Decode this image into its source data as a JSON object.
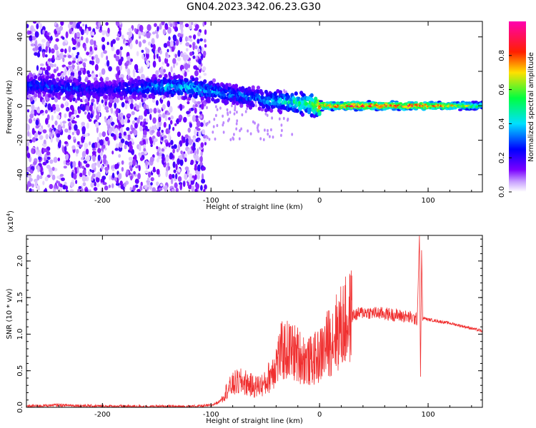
{
  "title": "GN04.2023.342.06.23.G30",
  "chart_data": [
    {
      "type": "heatmap",
      "xlabel": "Height of straight line (km)",
      "ylabel": "Frequency (Hz)",
      "xlim": [
        -270,
        150
      ],
      "ylim": [
        -50,
        49
      ],
      "xticks": [
        -200,
        -100,
        0,
        100
      ],
      "yticks": [
        -40,
        -20,
        0,
        20,
        40
      ],
      "colorbar": {
        "label": "Normalized spectral amplitude",
        "range": [
          0,
          1
        ],
        "ticks": [
          0.0,
          0.2,
          0.4,
          0.6,
          0.8
        ],
        "colors": [
          "#ffffff",
          "#7a00ff",
          "#0000ff",
          "#00e0ff",
          "#00ff40",
          "#ffe000",
          "#ff2000",
          "#ff00b0"
        ]
      },
      "ridge": {
        "x": [
          -260,
          -230,
          -200,
          -170,
          -145,
          -125,
          -105,
          -85,
          -65,
          -45,
          -25,
          -10,
          0,
          40,
          80,
          110,
          150
        ],
        "y": [
          12,
          10,
          9,
          10,
          11,
          11,
          9,
          7,
          5,
          3,
          2,
          1,
          0,
          0,
          0,
          0,
          0
        ],
        "amplitude": [
          0.3,
          0.3,
          0.25,
          0.3,
          0.4,
          0.45,
          0.4,
          0.35,
          0.35,
          0.4,
          0.5,
          0.6,
          0.85,
          0.9,
          0.9,
          0.85,
          0.55
        ]
      }
    },
    {
      "type": "line",
      "xlabel": "Height of straight line (km)",
      "ylabel": "SNR (10 * v/v)",
      "multiplier": "(x10",
      "multiplier_exp": "4",
      "xlim": [
        -270,
        150
      ],
      "ylim": [
        0,
        23500
      ],
      "xticks": [
        -200,
        -100,
        0,
        100
      ],
      "yticks": [
        0.0,
        0.5,
        1.0,
        1.5,
        2.0
      ],
      "color": "#f03030",
      "series": [
        {
          "x": [
            -270,
            -240,
            -200,
            -160,
            -120,
            -100,
            -92,
            -85,
            -78,
            -70,
            -60,
            -50,
            -42,
            -35,
            -28,
            -20,
            -10,
            0,
            10,
            20,
            30,
            40,
            60,
            80,
            90,
            92,
            93,
            94,
            95,
            96,
            100,
            120,
            140,
            150
          ],
          "y": [
            150,
            300,
            150,
            120,
            100,
            250,
            800,
            2400,
            3300,
            3500,
            2800,
            3200,
            5500,
            7600,
            7800,
            7200,
            6200,
            7000,
            9300,
            11000,
            12500,
            13000,
            12800,
            12400,
            12000,
            23500,
            4000,
            21500,
            12000,
            12200,
            12000,
            11500,
            10800,
            10400
          ]
        }
      ]
    }
  ]
}
